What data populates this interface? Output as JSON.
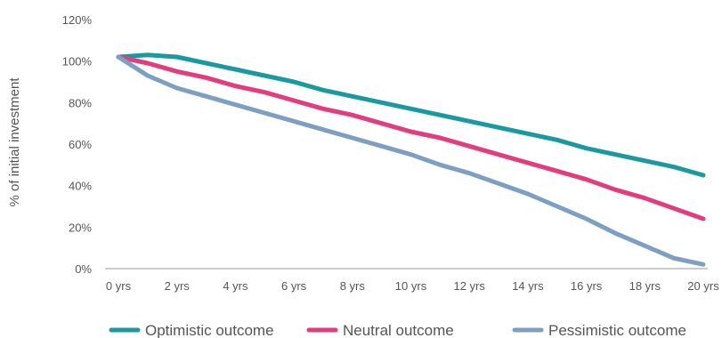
{
  "chart_data": {
    "type": "line",
    "title": "",
    "xlabel": "",
    "ylabel": "% of initial investment",
    "x": [
      0,
      1,
      2,
      3,
      4,
      5,
      6,
      7,
      8,
      9,
      10,
      11,
      12,
      13,
      14,
      15,
      16,
      17,
      18,
      19,
      20
    ],
    "x_tick_labels": [
      "0 yrs",
      "2 yrs",
      "4 yrs",
      "6 yrs",
      "8 yrs",
      "10 yrs",
      "12 yrs",
      "14 yrs",
      "16 yrs",
      "18 yrs",
      "20 yrs"
    ],
    "y_tick_labels": [
      "0%",
      "20%",
      "40%",
      "60%",
      "80%",
      "100%",
      "120%"
    ],
    "xlim": [
      0,
      20
    ],
    "ylim": [
      0,
      120
    ],
    "grid": false,
    "legend_position": "bottom",
    "series": [
      {
        "name": "Optimistic outcome",
        "color": "#1a9aa0",
        "values": [
          102,
          103,
          102,
          99,
          96,
          93,
          90,
          86,
          83,
          80,
          77,
          74,
          71,
          68,
          65,
          62,
          58,
          55,
          52,
          49,
          45
        ]
      },
      {
        "name": "Neutral outcome",
        "color": "#e23d7e",
        "values": [
          102,
          99,
          95,
          92,
          88,
          85,
          81,
          77,
          74,
          70,
          66,
          63,
          59,
          55,
          51,
          47,
          43,
          38,
          34,
          29,
          24
        ]
      },
      {
        "name": "Pessimistic outcome",
        "color": "#7d9fc4",
        "values": [
          102,
          93,
          87,
          83,
          79,
          75,
          71,
          67,
          63,
          59,
          55,
          50,
          46,
          41,
          36,
          30,
          24,
          17,
          11,
          5,
          2
        ]
      }
    ]
  }
}
